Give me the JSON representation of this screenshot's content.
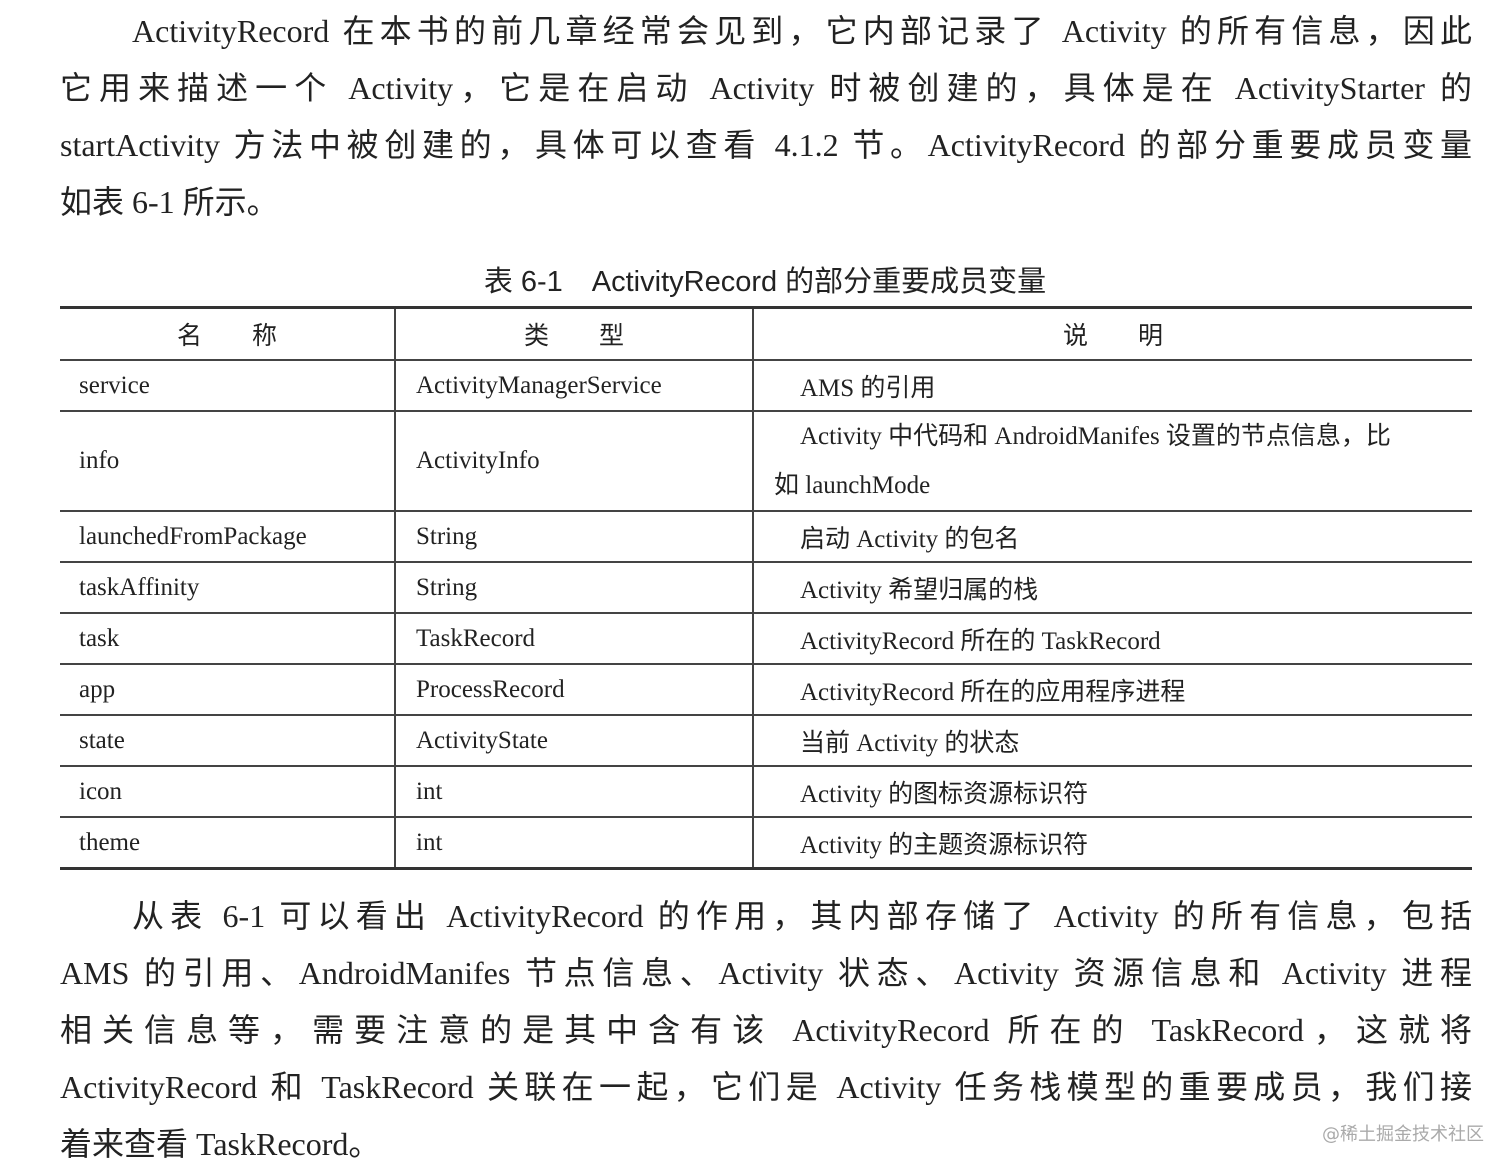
{
  "paragraph1": [
    "ActivityRecord 在本书的前几章经常会见到，它内部记录了 Activity 的所有信息，因此",
    "它用来描述一个 Activity，它是在启动 Activity 时被创建的，具体是在 ActivityStarter 的",
    "startActivity 方法中被创建的，具体可以查看 4.1.2 节。ActivityRecord 的部分重要成员变量",
    "如表 6-1 所示。"
  ],
  "table": {
    "caption": "表 6-1　ActivityRecord 的部分重要成员变量",
    "headers": [
      "名　　称",
      "类　　型",
      "说　　明"
    ],
    "rows": [
      {
        "name": "service",
        "type": "ActivityManagerService",
        "desc": "AMS 的引用"
      },
      {
        "name": "info",
        "type": "ActivityInfo",
        "desc_lines": [
          "Activity 中代码和 AndroidManifes 设置的节点信息，比",
          "如 launchMode"
        ]
      },
      {
        "name": "launchedFromPackage",
        "type": "String",
        "desc": "启动 Activity 的包名"
      },
      {
        "name": "taskAffinity",
        "type": "String",
        "desc": "Activity 希望归属的栈"
      },
      {
        "name": "task",
        "type": "TaskRecord",
        "desc": "ActivityRecord 所在的 TaskRecord"
      },
      {
        "name": "app",
        "type": "ProcessRecord",
        "desc": "ActivityRecord 所在的应用程序进程"
      },
      {
        "name": "state",
        "type": "ActivityState",
        "desc": "当前 Activity 的状态"
      },
      {
        "name": "icon",
        "type": "int",
        "desc": "Activity 的图标资源标识符"
      },
      {
        "name": "theme",
        "type": "int",
        "desc": "Activity 的主题资源标识符"
      }
    ]
  },
  "paragraph2": [
    "从表 6-1 可以看出 ActivityRecord 的作用，其内部存储了 Activity 的所有信息，包括",
    "AMS 的引用、AndroidManifes 节点信息、Activity 状态、Activity 资源信息和 Activity 进程",
    "相关信息等，需要注意的是其中含有该 ActivityRecord 所在的 TaskRecord，这就将",
    "ActivityRecord 和 TaskRecord 关联在一起，它们是 Activity 任务栈模型的重要成员，我们接",
    "着来查看 TaskRecord。"
  ],
  "watermark": "@稀土掘金技术社区"
}
